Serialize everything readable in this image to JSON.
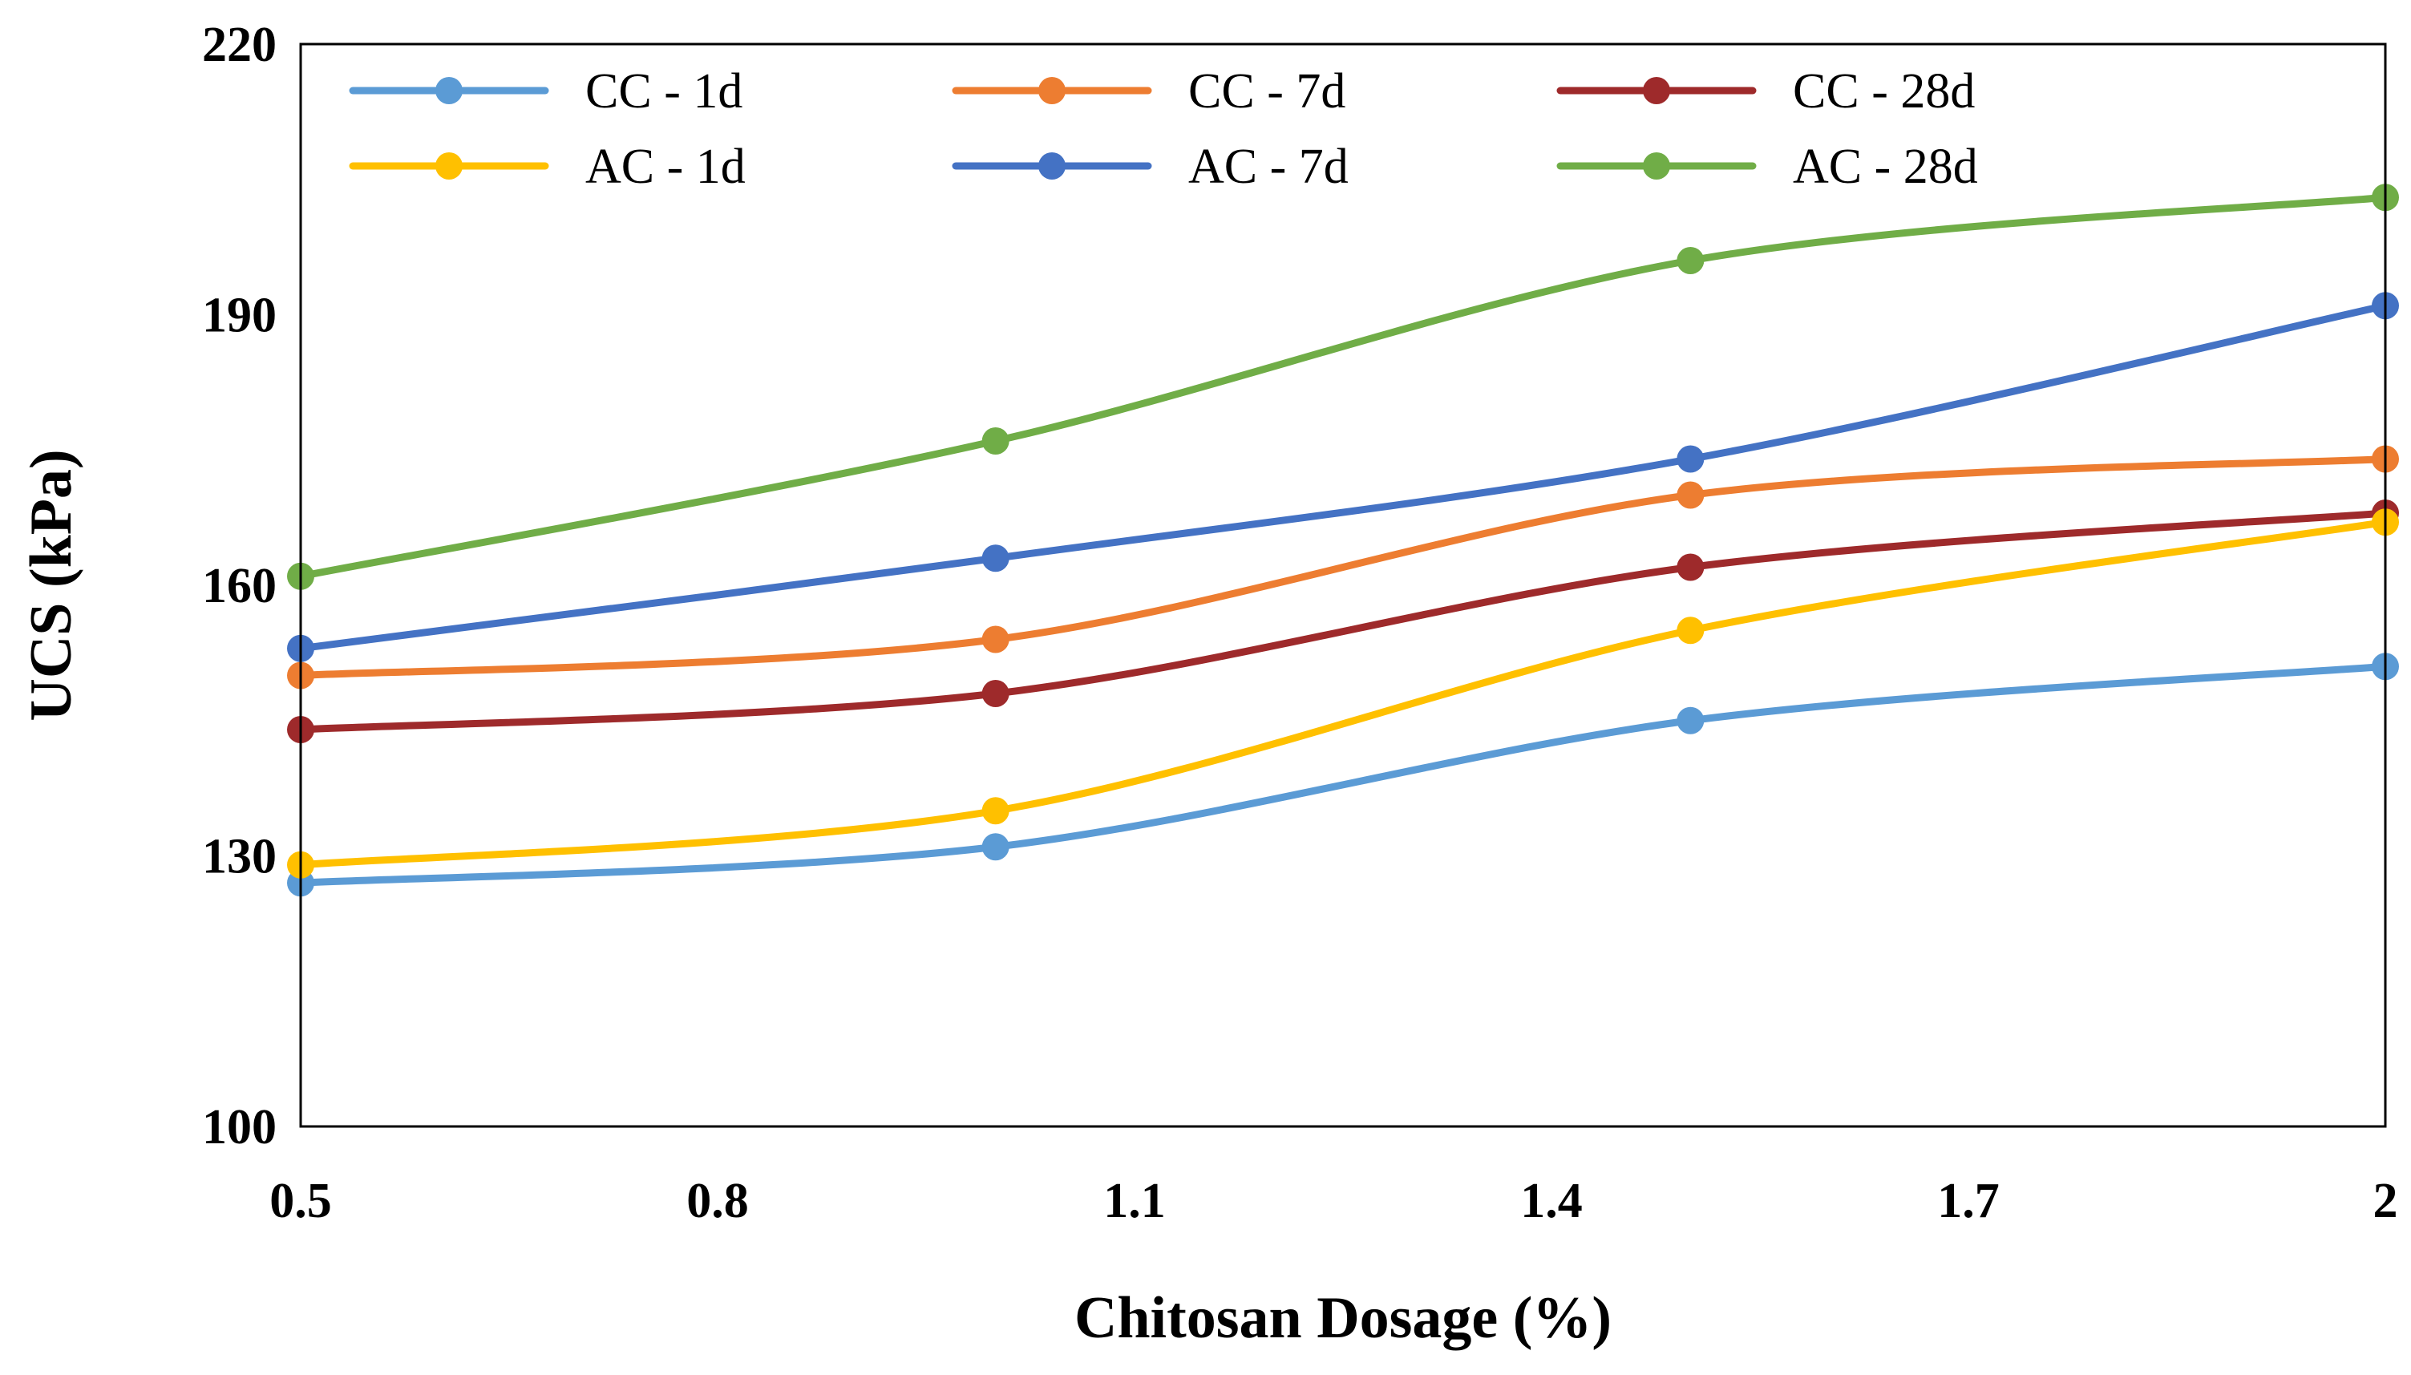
{
  "chart_data": {
    "type": "line",
    "title": "",
    "xlabel": "Chitosan Dosage (%)",
    "ylabel": "UCS (kPa)",
    "xlim": [
      0.5,
      2
    ],
    "ylim": [
      100,
      220
    ],
    "x_ticks": [
      "0.5",
      "0.8",
      "1.1",
      "1.4",
      "1.7",
      "2"
    ],
    "y_ticks": [
      "100",
      "130",
      "160",
      "190",
      "220"
    ],
    "grid": false,
    "legend_position": "top",
    "x": [
      0.5,
      1.0,
      1.5,
      2.0
    ],
    "series": [
      {
        "name": "CC - 1d",
        "color": "#5B9BD5",
        "values": [
          127,
          131,
          145,
          151
        ]
      },
      {
        "name": "CC - 7d",
        "color": "#ED7D31",
        "values": [
          150,
          154,
          170,
          174
        ]
      },
      {
        "name": "CC - 28d",
        "color": "#9E2A2B",
        "values": [
          144,
          148,
          162,
          168
        ]
      },
      {
        "name": "AC - 1d",
        "color": "#FFC000",
        "values": [
          129,
          135,
          155,
          167
        ]
      },
      {
        "name": "AC - 7d",
        "color": "#4472C4",
        "values": [
          153,
          163,
          174,
          191
        ]
      },
      {
        "name": "AC - 28d",
        "color": "#70AD47",
        "values": [
          161,
          176,
          196,
          203
        ]
      }
    ]
  }
}
